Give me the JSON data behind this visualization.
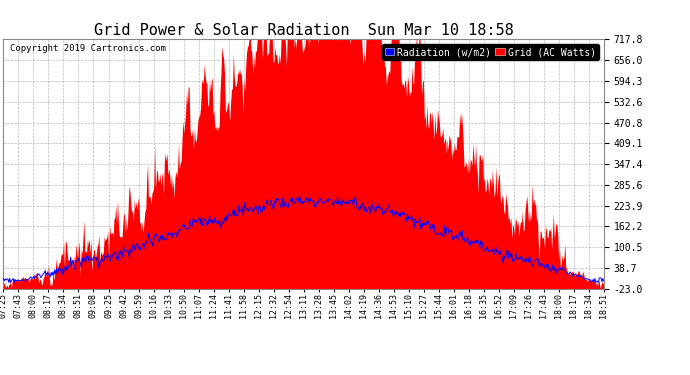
{
  "title": "Grid Power & Solar Radiation  Sun Mar 10 18:58",
  "copyright": "Copyright 2019 Cartronics.com",
  "ylabel_right": [
    "717.8",
    "656.0",
    "594.3",
    "532.6",
    "470.8",
    "409.1",
    "347.4",
    "285.6",
    "223.9",
    "162.2",
    "100.5",
    "38.7",
    "-23.0"
  ],
  "ylim": [
    -23.0,
    717.8
  ],
  "yticks": [
    717.8,
    656.0,
    594.3,
    532.6,
    470.8,
    409.1,
    347.4,
    285.6,
    223.9,
    162.2,
    100.5,
    38.7,
    -23.0
  ],
  "background_color": "#ffffff",
  "plot_bg_color": "#ffffff",
  "grid_color": "#aaaaaa",
  "red_fill_color": "#ff0000",
  "blue_line_color": "#0000ff",
  "title_fontsize": 11,
  "x_labels": [
    "07:25",
    "07:43",
    "08:00",
    "08:17",
    "08:34",
    "08:51",
    "09:08",
    "09:25",
    "09:42",
    "09:59",
    "10:16",
    "10:33",
    "10:50",
    "11:07",
    "11:24",
    "11:41",
    "11:58",
    "12:15",
    "12:32",
    "12:54",
    "13:11",
    "13:28",
    "13:45",
    "14:02",
    "14:19",
    "14:36",
    "14:53",
    "15:10",
    "15:27",
    "15:44",
    "16:01",
    "16:18",
    "16:35",
    "16:52",
    "17:09",
    "17:26",
    "17:43",
    "18:00",
    "18:17",
    "18:34",
    "18:51"
  ],
  "legend_labels": [
    "Radiation (w/m2)",
    "Grid (AC Watts)"
  ],
  "legend_colors": [
    "#0000ff",
    "#ff0000"
  ],
  "peak_grid": 740.0,
  "peak_radiation": 240.0
}
